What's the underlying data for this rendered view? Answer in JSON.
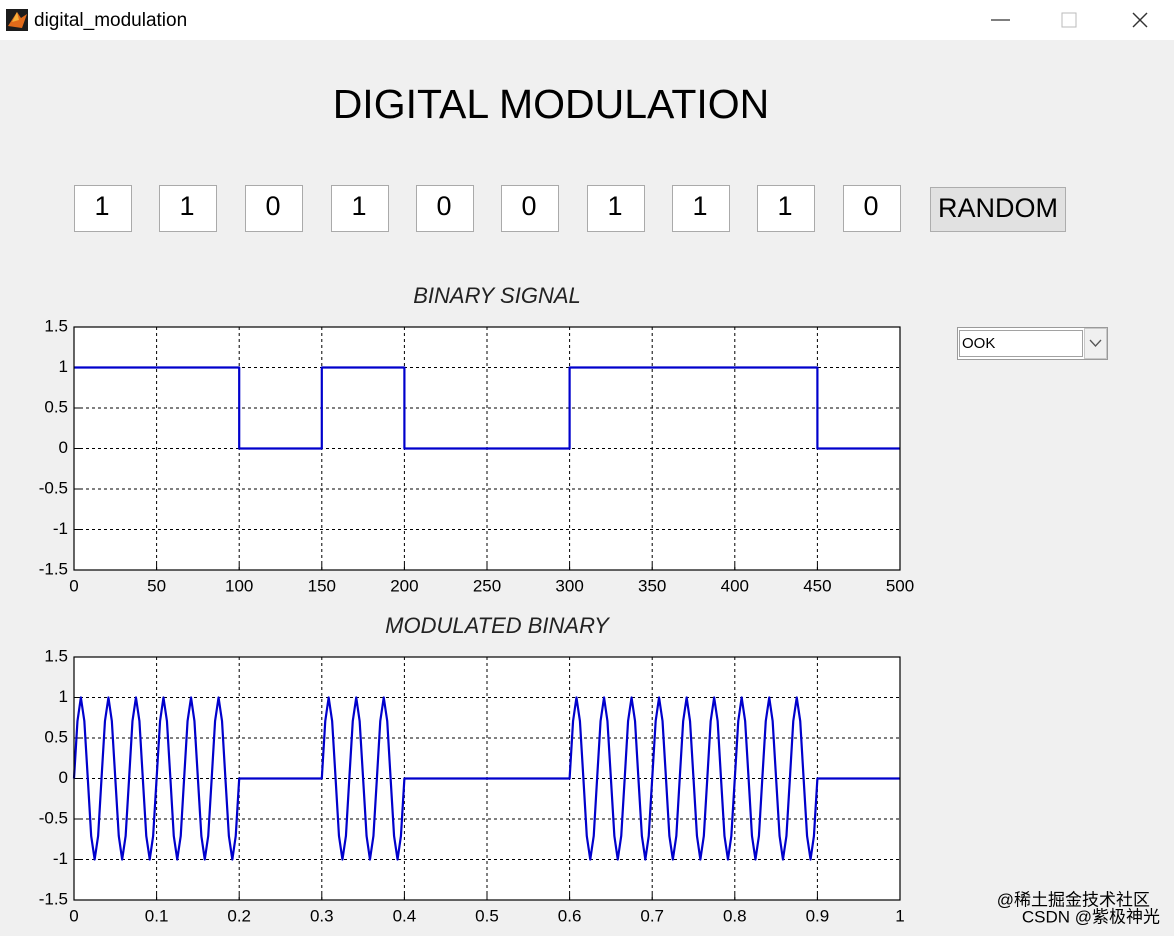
{
  "window": {
    "title": "digital_modulation"
  },
  "header": {
    "title": "DIGITAL MODULATION"
  },
  "bits": [
    1,
    1,
    0,
    1,
    0,
    0,
    1,
    1,
    1,
    0
  ],
  "random_button": "RANDOM",
  "dropdown": "OOK",
  "watermark": [
    "@稀土掘金技术社区",
    "CSDN @紫极神光"
  ],
  "chart_data": [
    {
      "type": "line",
      "title": "BINARY SIGNAL",
      "color": "#0000cc",
      "grid": true,
      "x": [
        0,
        100,
        100,
        150,
        150,
        200,
        200,
        300,
        300,
        450,
        450,
        500
      ],
      "values": [
        1,
        1,
        0,
        0,
        1,
        1,
        0,
        0,
        1,
        1,
        0,
        0
      ],
      "xlim": [
        0,
        500
      ],
      "xticks": [
        0,
        50,
        100,
        150,
        200,
        250,
        300,
        350,
        400,
        450,
        500
      ],
      "ylim": [
        -1.5,
        1.5
      ],
      "yticks": [
        -1.5,
        -1,
        -0.5,
        0,
        0.5,
        1,
        1.5
      ]
    },
    {
      "type": "line",
      "title": "MODULATED BINARY",
      "color": "#0000cc",
      "grid": true,
      "x": [
        0,
        0.0042,
        0.0083,
        0.0125,
        0.0167,
        0.0208,
        0.025,
        0.0292,
        0.0333,
        0.0375,
        0.0417,
        0.0458,
        0.05,
        0.0542,
        0.0583,
        0.0625,
        0.0667,
        0.0708,
        0.075,
        0.0792,
        0.0833,
        0.0875,
        0.0917,
        0.0958,
        0.1,
        0.1042,
        0.1083,
        0.1125,
        0.1167,
        0.1208,
        0.125,
        0.1292,
        0.1333,
        0.1375,
        0.1417,
        0.1458,
        0.15,
        0.1542,
        0.1583,
        0.1625,
        0.1667,
        0.1708,
        0.175,
        0.1792,
        0.1833,
        0.1875,
        0.1917,
        0.1958,
        0.2,
        0.3,
        0.3042,
        0.3083,
        0.3125,
        0.3167,
        0.3208,
        0.325,
        0.3292,
        0.3333,
        0.3375,
        0.3417,
        0.3458,
        0.35,
        0.3542,
        0.3583,
        0.3625,
        0.3667,
        0.3708,
        0.375,
        0.3792,
        0.3833,
        0.3875,
        0.3917,
        0.3958,
        0.4,
        0.6,
        0.6042,
        0.6083,
        0.6125,
        0.6167,
        0.6208,
        0.625,
        0.6292,
        0.6333,
        0.6375,
        0.6417,
        0.6458,
        0.65,
        0.6542,
        0.6583,
        0.6625,
        0.6667,
        0.6708,
        0.675,
        0.6792,
        0.6833,
        0.6875,
        0.6917,
        0.6958,
        0.7,
        0.7042,
        0.7083,
        0.7125,
        0.7167,
        0.7208,
        0.725,
        0.7292,
        0.7333,
        0.7375,
        0.7417,
        0.7458,
        0.75,
        0.7542,
        0.7583,
        0.7625,
        0.7667,
        0.7708,
        0.775,
        0.7792,
        0.7833,
        0.7875,
        0.7917,
        0.7958,
        0.8,
        0.8042,
        0.8083,
        0.8125,
        0.8167,
        0.8208,
        0.825,
        0.8292,
        0.8333,
        0.8375,
        0.8417,
        0.8458,
        0.85,
        0.8542,
        0.8583,
        0.8625,
        0.8667,
        0.8708,
        0.875,
        0.8792,
        0.8833,
        0.8875,
        0.8917,
        0.8958,
        0.9,
        1
      ],
      "values": [
        0,
        0.71,
        1,
        0.71,
        0,
        -0.71,
        -1,
        -0.71,
        0,
        0.71,
        1,
        0.71,
        0,
        -0.71,
        -1,
        -0.71,
        0,
        0.71,
        1,
        0.71,
        0,
        -0.71,
        -1,
        -0.71,
        0,
        0.71,
        1,
        0.71,
        0,
        -0.71,
        -1,
        -0.71,
        0,
        0.71,
        1,
        0.71,
        0,
        -0.71,
        -1,
        -0.71,
        0,
        0.71,
        1,
        0.71,
        0,
        -0.71,
        -1,
        -0.71,
        0,
        0,
        0.71,
        1,
        0.71,
        0,
        -0.71,
        -1,
        -0.71,
        0,
        0.71,
        1,
        0.71,
        0,
        -0.71,
        -1,
        -0.71,
        0,
        0.71,
        1,
        0.71,
        0,
        -0.71,
        -1,
        -0.71,
        0,
        0,
        0.71,
        1,
        0.71,
        0,
        -0.71,
        -1,
        -0.71,
        0,
        0.71,
        1,
        0.71,
        0,
        -0.71,
        -1,
        -0.71,
        0,
        0.71,
        1,
        0.71,
        0,
        -0.71,
        -1,
        -0.71,
        0,
        0.71,
        1,
        0.71,
        0,
        -0.71,
        -1,
        -0.71,
        0,
        0.71,
        1,
        0.71,
        0,
        -0.71,
        -1,
        -0.71,
        0,
        0.71,
        1,
        0.71,
        0,
        -0.71,
        -1,
        -0.71,
        0,
        0.71,
        1,
        0.71,
        0,
        -0.71,
        -1,
        -0.71,
        0,
        0.71,
        1,
        0.71,
        0,
        -0.71,
        -1,
        -0.71,
        0,
        0.71,
        1,
        0.71,
        0,
        -0.71,
        -1,
        -0.71,
        0,
        0
      ],
      "xlim": [
        0,
        1
      ],
      "xticks": [
        0,
        0.1,
        0.2,
        0.3,
        0.4,
        0.5,
        0.6,
        0.7,
        0.8,
        0.9,
        1
      ],
      "ylim": [
        -1.5,
        1.5
      ],
      "yticks": [
        -1.5,
        -1,
        -0.5,
        0,
        0.5,
        1,
        1.5
      ]
    }
  ]
}
